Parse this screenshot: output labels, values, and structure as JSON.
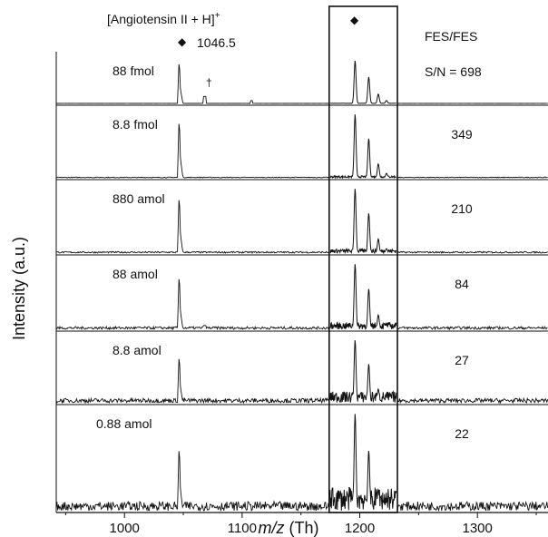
{
  "chart_data": {
    "type": "line",
    "title": "",
    "xlabel_italic": "m/z",
    "xlabel_unit": " (Th)",
    "ylabel": "Intensity (a.u.)",
    "xlim": [
      942,
      1360
    ],
    "x_ticks": [
      1000,
      1100,
      1200,
      1300
    ],
    "x_tick_labels": [
      "1000",
      "1100",
      "1200",
      "1300"
    ],
    "header": {
      "peak_label": "[Angiotensin II + H]",
      "peak_label_sup": "+",
      "peak_mz": "1046.5",
      "peak_marker": "◆",
      "impurity_marker": "†",
      "method": "FES/FES"
    },
    "zoom_window_mz": [
      1174,
      1232
    ],
    "zoom_marker": "◆",
    "series": [
      {
        "name": "88 fmol",
        "snr": "S/N = 698",
        "noise": 0.004,
        "peak": 1.0,
        "impurity": 0.13
      },
      {
        "name": "8.8 fmol",
        "snr": "349",
        "noise": 0.03,
        "peak": 0.95,
        "impurity": 0.0
      },
      {
        "name": "880 amol",
        "snr": "210",
        "noise": 0.06,
        "peak": 0.92,
        "impurity": 0.0
      },
      {
        "name": "88 amol",
        "snr": "84",
        "noise": 0.1,
        "peak": 0.86,
        "impurity": 0.05
      },
      {
        "name": "8.8 amol",
        "snr": "27",
        "noise": 0.17,
        "peak": 0.78,
        "impurity": 0.0
      },
      {
        "name": "0.88 amol",
        "snr": "22",
        "noise": 0.24,
        "peak": 0.7,
        "impurity": 0.0
      }
    ]
  }
}
